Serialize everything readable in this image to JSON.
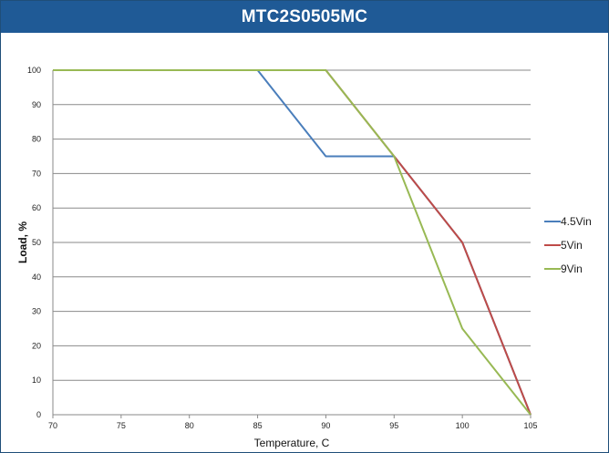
{
  "title": "MTC2S0505MC",
  "colors": {
    "title_bar": "#1f5a96",
    "grid": "#8a8a8a"
  },
  "chart_data": {
    "type": "line",
    "title": "MTC2S0505MC",
    "xlabel": "Temperature, C",
    "ylabel": "Load, %",
    "xlim": [
      70,
      105
    ],
    "ylim": [
      0,
      100
    ],
    "x_ticks": [
      70,
      75,
      80,
      85,
      90,
      95,
      100,
      105
    ],
    "y_ticks": [
      0,
      10,
      20,
      30,
      40,
      50,
      60,
      70,
      80,
      90,
      100
    ],
    "grid": "horizontal",
    "legend_position": "right",
    "series": [
      {
        "name": "4.5Vin",
        "color": "#4a7ebb",
        "x": [
          70,
          85,
          90,
          95,
          100,
          105
        ],
        "y": [
          100,
          100,
          75,
          75,
          50,
          0
        ]
      },
      {
        "name": "5Vin",
        "color": "#be4b48",
        "x": [
          70,
          90,
          95,
          100,
          105
        ],
        "y": [
          100,
          100,
          75,
          50,
          0
        ]
      },
      {
        "name": "9Vin",
        "color": "#98b954",
        "x": [
          70,
          90,
          95,
          100,
          105
        ],
        "y": [
          100,
          100,
          75,
          25,
          0
        ]
      }
    ]
  }
}
